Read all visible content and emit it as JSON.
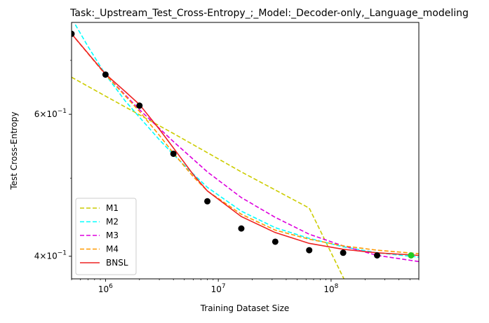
{
  "chart_data": {
    "type": "line",
    "title": "Task:_Upstream_Test_Cross-Entropy_;_Model:_Decoder-only,_Language_modeling",
    "xlabel": "Training Dataset Size",
    "ylabel": "Test Cross-Entropy",
    "xscale": "log",
    "yscale": "log",
    "xlim": [
      500000,
      600000000
    ],
    "ylim": [
      0.375,
      0.78
    ],
    "grid": false,
    "legend_position": "lower-left",
    "x_ticks": [
      {
        "value": 1000000,
        "base": "10",
        "exp": "6"
      },
      {
        "value": 10000000,
        "base": "10",
        "exp": "7"
      },
      {
        "value": 100000000,
        "base": "10",
        "exp": "8"
      }
    ],
    "y_ticks": [
      {
        "value": 0.4,
        "mantissa": "4",
        "times": "×",
        "base": "10",
        "exp": "−1"
      },
      {
        "value": 0.6,
        "mantissa": "6",
        "times": "×",
        "base": "10",
        "exp": "−1"
      }
    ],
    "y_minor_ticks": [
      0.5,
      0.7
    ],
    "points": {
      "color": "#000000",
      "x": [
        500000,
        1000000,
        2000000,
        4000000,
        8000000,
        16000000,
        32000000,
        64000000,
        128000000,
        256000000
      ],
      "y": [
        0.755,
        0.672,
        0.615,
        0.536,
        0.468,
        0.433,
        0.417,
        0.407,
        0.404,
        0.401
      ]
    },
    "extra_point": {
      "x": 512000000,
      "y": 0.401,
      "color": "#22cc22"
    },
    "series": [
      {
        "name": "M1",
        "color": "#cccc00",
        "dash": "dashed",
        "x": [
          500000,
          1000000,
          4000000,
          16000000,
          64000000,
          130000000
        ],
        "y": [
          0.667,
          0.632,
          0.568,
          0.509,
          0.459,
          0.375
        ]
      },
      {
        "name": "M2",
        "color": "#00ffff",
        "dash": "dashed",
        "x": [
          540000,
          700000,
          1000000,
          1500000,
          2000000,
          3000000,
          4000000,
          6000000,
          8000000,
          16000000,
          32000000,
          64000000,
          128000000,
          256000000,
          600000000
        ],
        "y": [
          0.775,
          0.728,
          0.672,
          0.623,
          0.595,
          0.558,
          0.535,
          0.506,
          0.487,
          0.455,
          0.434,
          0.421,
          0.411,
          0.404,
          0.399
        ]
      },
      {
        "name": "M3",
        "color": "#dd00dd",
        "dash": "dashed",
        "x": [
          500000,
          1000000,
          2000000,
          4000000,
          8000000,
          16000000,
          32000000,
          64000000,
          128000000,
          256000000,
          600000000
        ],
        "y": [
          0.755,
          0.672,
          0.608,
          0.555,
          0.509,
          0.473,
          0.447,
          0.426,
          0.412,
          0.401,
          0.394
        ]
      },
      {
        "name": "M4",
        "color": "#ff9900",
        "dash": "dashed",
        "x": [
          500000,
          1000000,
          2000000,
          3000000,
          4000000,
          6000000,
          8000000,
          16000000,
          32000000,
          64000000,
          128000000,
          256000000,
          600000000
        ],
        "y": [
          0.755,
          0.672,
          0.605,
          0.565,
          0.537,
          0.502,
          0.482,
          0.451,
          0.431,
          0.42,
          0.412,
          0.407,
          0.403
        ]
      },
      {
        "name": "BNSL",
        "color": "#ee2222",
        "dash": "solid",
        "x": [
          500000,
          1000000,
          1500000,
          2000000,
          3000000,
          4000000,
          6000000,
          8000000,
          16000000,
          32000000,
          64000000,
          128000000,
          256000000,
          600000000
        ],
        "y": [
          0.755,
          0.673,
          0.64,
          0.617,
          0.575,
          0.545,
          0.505,
          0.482,
          0.448,
          0.428,
          0.415,
          0.408,
          0.404,
          0.401
        ]
      }
    ]
  }
}
